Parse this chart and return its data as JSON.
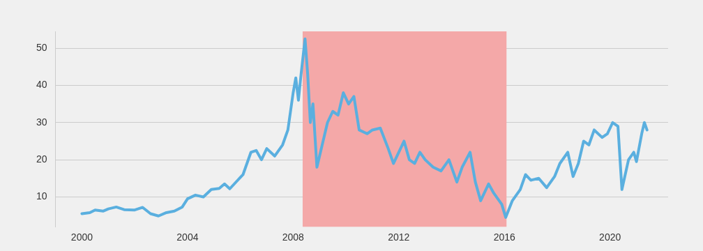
{
  "chart_data": {
    "type": "line",
    "x": [
      2000.0,
      2000.3,
      2000.5,
      2000.8,
      2001.0,
      2001.3,
      2001.6,
      2002.0,
      2002.3,
      2002.6,
      2002.9,
      2003.2,
      2003.5,
      2003.8,
      2004.0,
      2004.3,
      2004.6,
      2004.9,
      2005.2,
      2005.4,
      2005.6,
      2005.9,
      2006.1,
      2006.4,
      2006.6,
      2006.8,
      2007.0,
      2007.3,
      2007.6,
      2007.8,
      2008.0,
      2008.1,
      2008.2,
      2008.3,
      2008.45,
      2008.55,
      2008.65,
      2008.75,
      2008.9,
      2009.1,
      2009.3,
      2009.5,
      2009.7,
      2009.9,
      2010.1,
      2010.3,
      2010.5,
      2010.8,
      2011.0,
      2011.3,
      2011.6,
      2011.8,
      2012.0,
      2012.2,
      2012.4,
      2012.6,
      2012.8,
      2013.0,
      2013.3,
      2013.6,
      2013.9,
      2014.2,
      2014.4,
      2014.7,
      2014.9,
      2015.1,
      2015.4,
      2015.6,
      2015.9,
      2016.05,
      2016.3,
      2016.6,
      2016.8,
      2017.0,
      2017.3,
      2017.6,
      2017.9,
      2018.1,
      2018.4,
      2018.6,
      2018.8,
      2019.0,
      2019.2,
      2019.4,
      2019.7,
      2019.9,
      2020.1,
      2020.3,
      2020.45,
      2020.7,
      2020.9,
      2021.0,
      2021.2,
      2021.3,
      2021.4
    ],
    "series": [
      {
        "color": "#5aafdf",
        "values": [
          5.5,
          5.8,
          6.5,
          6.2,
          6.8,
          7.3,
          6.6,
          6.5,
          7.2,
          5.5,
          4.9,
          5.8,
          6.2,
          7.3,
          9.5,
          10.5,
          10.0,
          12.0,
          12.3,
          13.5,
          12.2,
          14.5,
          16.0,
          22.0,
          22.5,
          20.0,
          23.0,
          21.0,
          24.0,
          28.0,
          38,
          42,
          36,
          43,
          52.5,
          43,
          30,
          35,
          18,
          24,
          30,
          33,
          32,
          38,
          35,
          37,
          28,
          27,
          28,
          28.5,
          23,
          19,
          22,
          25,
          20,
          19,
          22,
          20,
          18,
          17,
          20,
          14,
          18,
          22,
          14,
          9,
          13.5,
          11,
          8,
          4.5,
          9,
          12,
          16,
          14.5,
          15,
          12.5,
          15.5,
          19,
          22,
          15.5,
          19,
          25,
          24,
          28,
          26,
          27,
          30,
          29,
          12,
          20,
          22,
          19.5,
          27,
          30,
          28
        ]
      }
    ],
    "xlim": [
      1999,
      2022.2
    ],
    "xticks": [
      2000,
      2004,
      2008,
      2012,
      2016,
      2020
    ],
    "ylim": [
      2,
      54.5
    ],
    "yticks": [
      10,
      20,
      30,
      40,
      50
    ],
    "grid": "y",
    "marker": "none",
    "line_style": "solid",
    "bands": [
      {
        "axis": "x",
        "from": 2008.36,
        "to": 2016.08,
        "color": "#f4a8a8"
      }
    ]
  }
}
